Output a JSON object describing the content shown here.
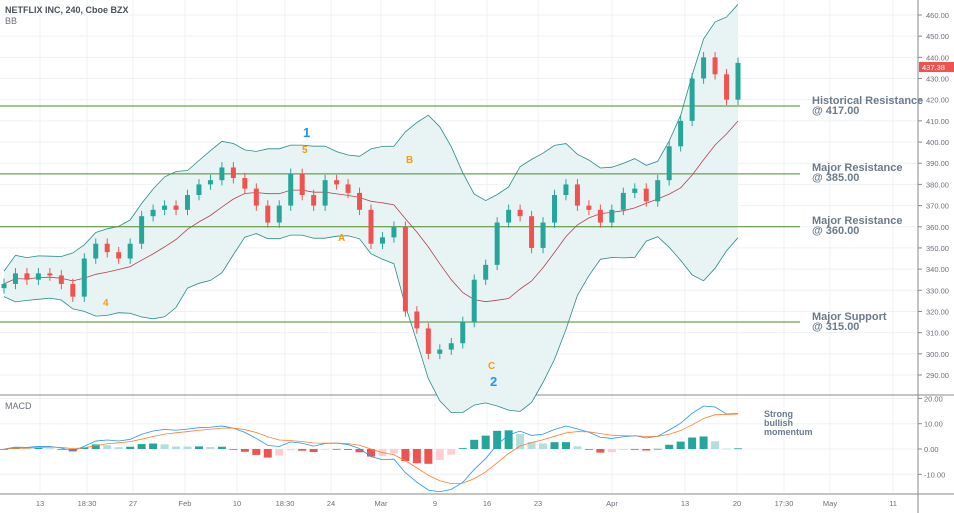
{
  "header": {
    "title": "NETFLIX INC, 240, Cboe BZX",
    "indicator_top": "BB",
    "indicator_bottom": "MACD"
  },
  "colors": {
    "up": "#26a69a",
    "down": "#ef5350",
    "band": "#2a8a8a",
    "band_fill": "#e8f4f4",
    "basis": "#b2444c",
    "level_line": "#4a8a2a",
    "macd_line": "#2196f3",
    "signal_line": "#ff7f2a",
    "wave_blue": "#2196f3",
    "wave_orange": "#f39c12",
    "last_price": "#ef5350"
  },
  "last_price": "437.38",
  "annotations": [
    {
      "line1": "Historical Resistance",
      "line2": "@ 417.00",
      "level": 417
    },
    {
      "line1": "Major Resistance",
      "line2": "@ 385.00",
      "level": 385
    },
    {
      "line1": "Major Resistance",
      "line2": "@ 360.00",
      "level": 360
    },
    {
      "line1": "Major Support",
      "line2": "@ 315.00",
      "level": 315
    }
  ],
  "momentum_note": [
    "Strong",
    "bullish",
    "momentum"
  ],
  "waves": [
    {
      "label": "4",
      "color": "orange"
    },
    {
      "label": "1",
      "color": "blue"
    },
    {
      "label": "5",
      "color": "orange"
    },
    {
      "label": "A",
      "color": "orange"
    },
    {
      "label": "B",
      "color": "orange"
    },
    {
      "label": "C",
      "color": "orange"
    },
    {
      "label": "2",
      "color": "blue"
    }
  ],
  "chart_data": {
    "type": "candlestick",
    "price_axis": {
      "ticks": [
        "460.00",
        "450.00",
        "440.00",
        "430.00",
        "420.00",
        "410.00",
        "400.00",
        "390.00",
        "380.00",
        "370.00",
        "360.00",
        "350.00",
        "340.00",
        "330.00",
        "320.00",
        "310.00",
        "300.00",
        "290.00"
      ],
      "range": [
        284,
        465
      ]
    },
    "macd_axis": {
      "ticks": [
        "20.00",
        "10.00",
        "0.00",
        "-10.00"
      ],
      "range": [
        -16,
        21
      ]
    },
    "time_axis": {
      "ticks": [
        "13",
        "18:30",
        "27",
        "Feb",
        "10",
        "18:30",
        "24",
        "Mar",
        "9",
        "16",
        "23",
        "Apr",
        "13",
        "20",
        "17:30",
        "May",
        "11"
      ]
    },
    "closes": [
      333,
      338,
      335,
      338,
      337,
      333,
      327,
      345,
      352,
      348,
      345,
      352,
      365,
      368,
      370,
      368,
      375,
      380,
      382,
      388,
      383,
      378,
      370,
      362,
      370,
      385,
      375,
      370,
      382,
      380,
      376,
      368,
      352,
      355,
      360,
      320,
      312,
      300,
      302,
      305,
      315,
      335,
      342,
      362,
      368,
      365,
      350,
      362,
      375,
      380,
      370,
      368,
      362,
      368,
      376,
      378,
      372,
      382,
      398,
      410,
      430,
      440,
      432,
      420,
      437.38
    ],
    "grid": true
  }
}
